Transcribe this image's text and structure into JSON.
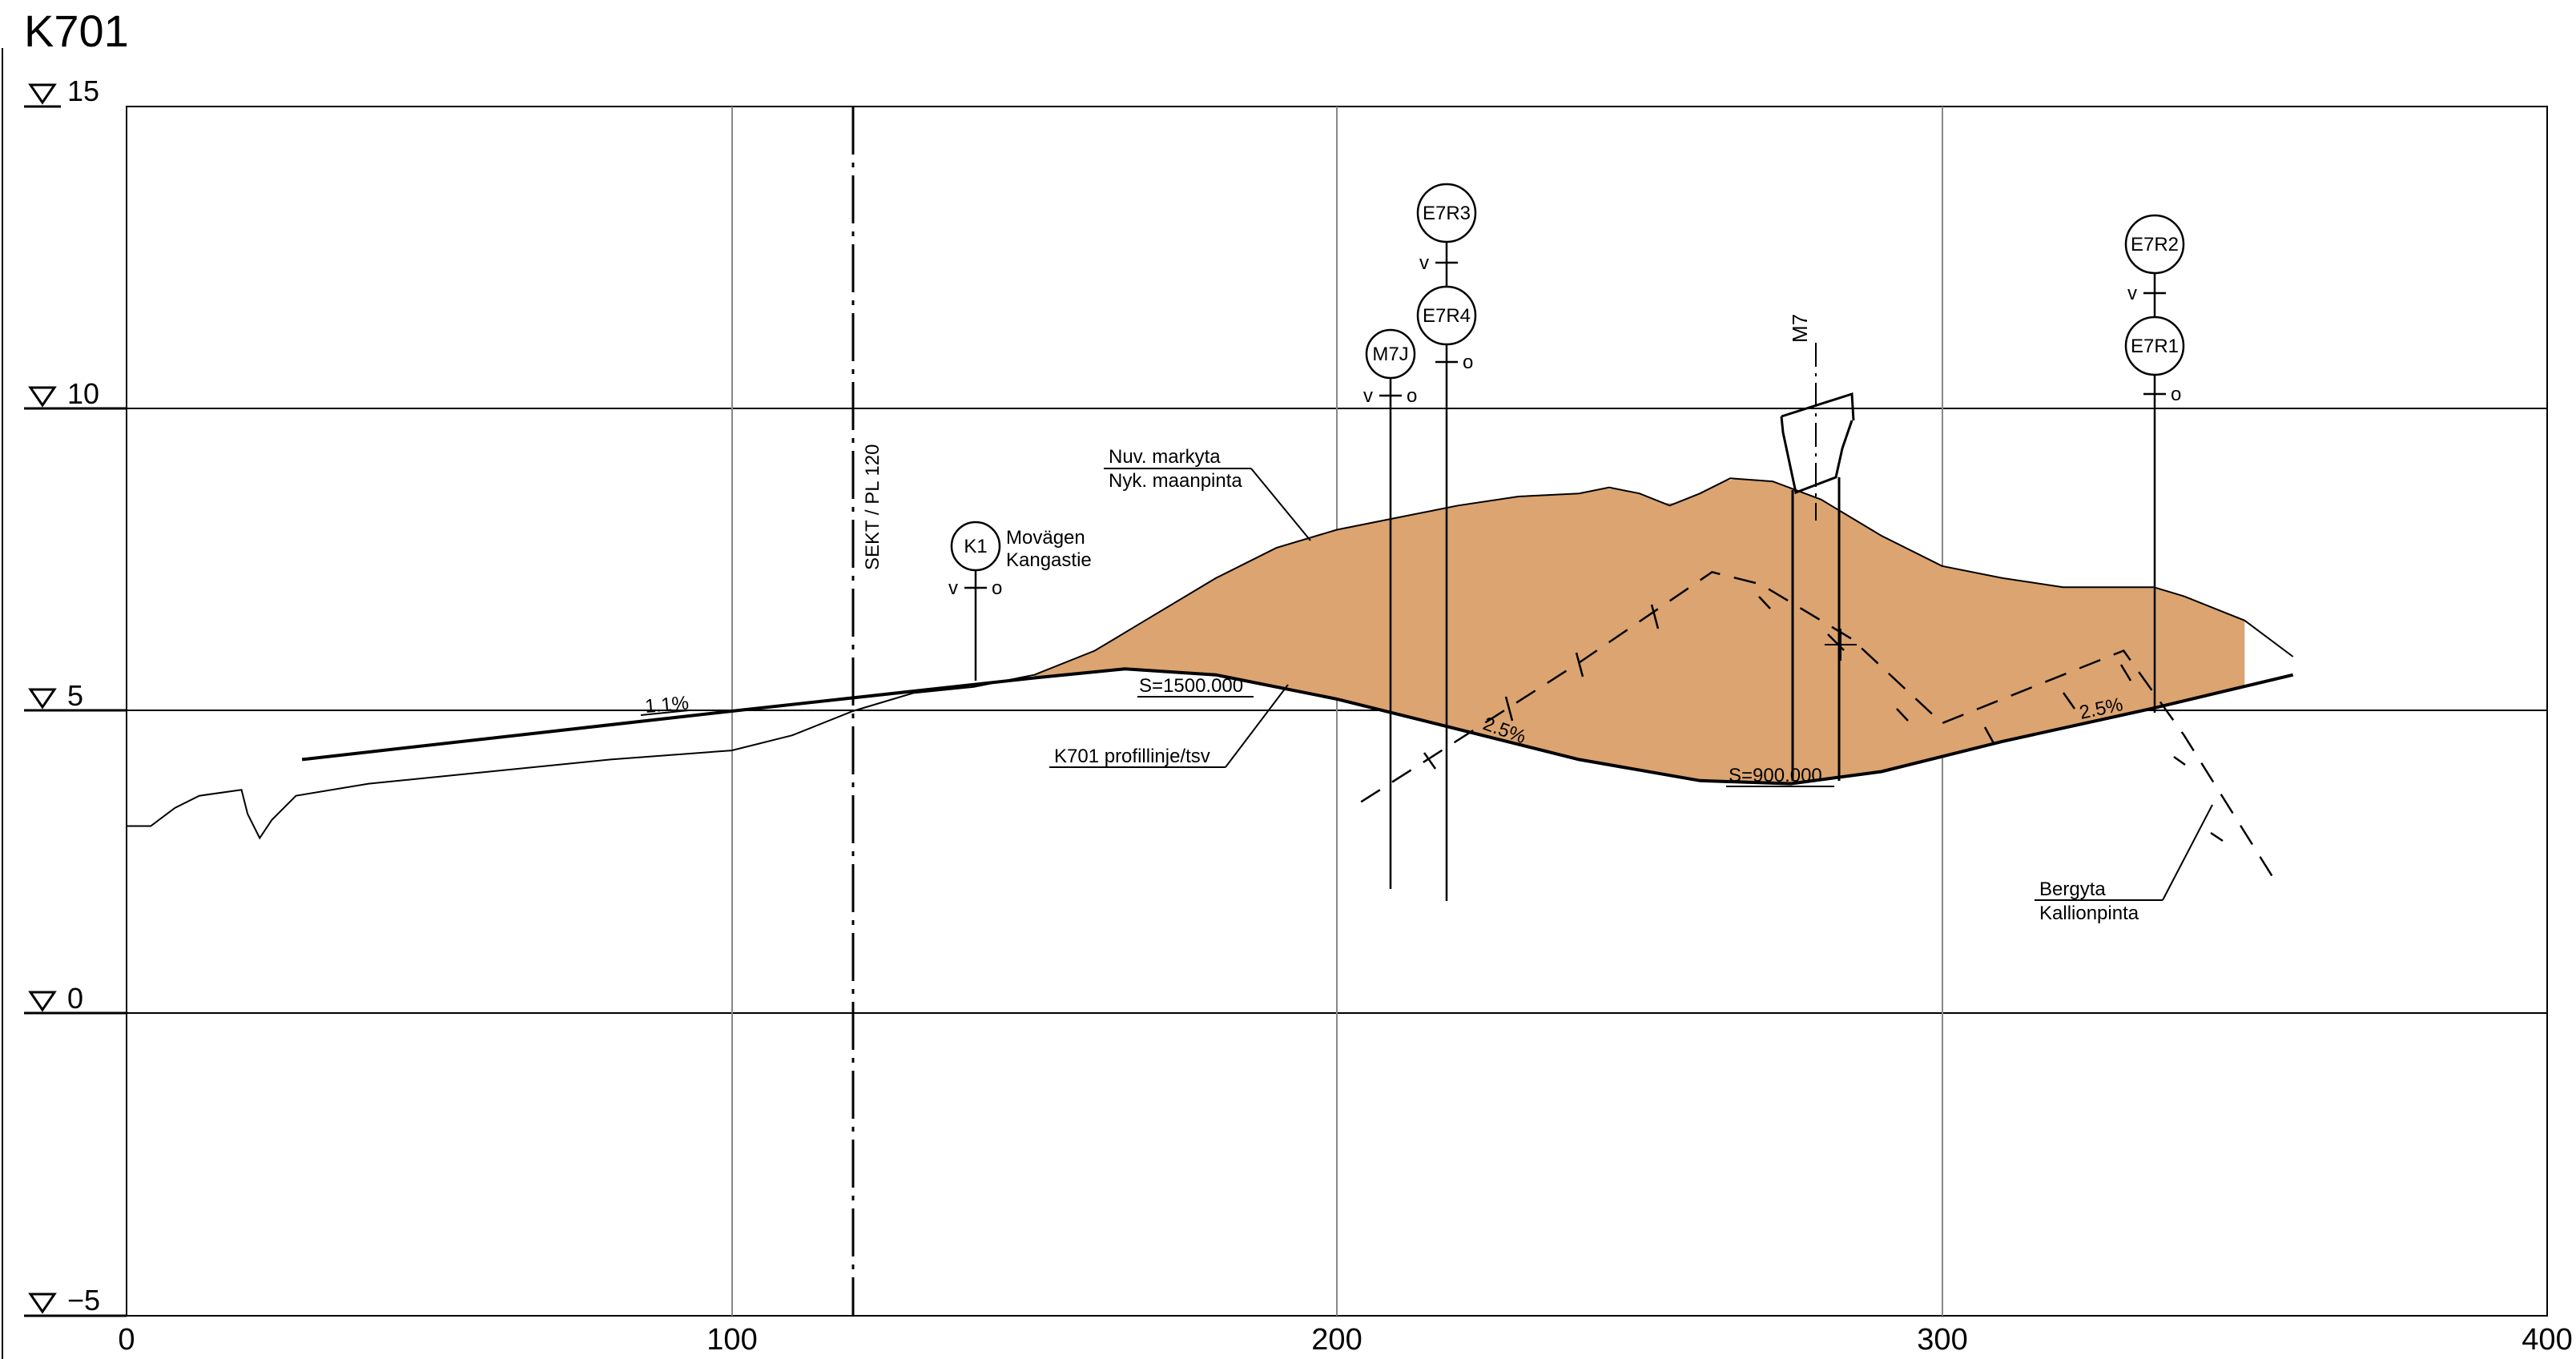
{
  "title": "K701",
  "elevation_labels": [
    "15",
    "10",
    "5",
    "0",
    "−5"
  ],
  "station_labels": [
    "0",
    "100",
    "200",
    "300",
    "400"
  ],
  "section_line": {
    "label": "SEKT / PL 120",
    "station": 120
  },
  "annotations": {
    "ground_surface_sv": "Nuv. markyta",
    "ground_surface_fi": "Nyk. maanpinta",
    "profile_line": "K701 profillinje/tsv",
    "bedrock_sv": "Bergyta",
    "bedrock_fi": "Kallionpinta",
    "slope_left": "1.1%",
    "slope_mid": "2.5%",
    "slope_right": "2.5%",
    "crest_radius": "S=1500.000",
    "sag_radius": "S=900.000",
    "road_sv": "Movägen",
    "road_fi": "Kangastie",
    "structure": "M7"
  },
  "boreholes": [
    {
      "id": "K1",
      "left_mark": "v",
      "right_mark": "o"
    },
    {
      "id": "M7J",
      "left_mark": "v",
      "right_mark": "o"
    },
    {
      "id": "E7R3",
      "left_mark": "v",
      "right_mark": ""
    },
    {
      "id": "E7R4",
      "left_mark": "",
      "right_mark": "o"
    },
    {
      "id": "E7R2",
      "left_mark": "v",
      "right_mark": ""
    },
    {
      "id": "E7R1",
      "left_mark": "",
      "right_mark": "o"
    }
  ],
  "colors": {
    "fill": "#dba470",
    "line": "#000000",
    "grid": "#808080"
  },
  "chart_data": {
    "type": "profile",
    "title": "K701",
    "x_range": [
      0,
      400
    ],
    "y_range": [
      -5,
      15
    ],
    "x_ticks": [
      0,
      100,
      200,
      300,
      400
    ],
    "y_ticks": [
      15,
      10,
      5,
      0,
      -5
    ],
    "grid": true,
    "series": [
      {
        "name": "Nuv. markyta / Nyk. maanpinta",
        "points": [
          [
            0,
            3.1
          ],
          [
            4,
            3.1
          ],
          [
            8,
            3.4
          ],
          [
            12,
            3.6
          ],
          [
            19,
            3.7
          ],
          [
            20,
            3.3
          ],
          [
            22,
            2.9
          ],
          [
            24,
            3.2
          ],
          [
            28,
            3.6
          ],
          [
            40,
            3.8
          ],
          [
            60,
            4.0
          ],
          [
            80,
            4.2
          ],
          [
            100,
            4.35
          ],
          [
            110,
            4.6
          ],
          [
            120,
            5.0
          ],
          [
            130,
            5.3
          ],
          [
            140,
            5.4
          ],
          [
            150,
            5.6
          ],
          [
            160,
            6.0
          ],
          [
            170,
            6.6
          ],
          [
            180,
            7.2
          ],
          [
            190,
            7.7
          ],
          [
            200,
            8.0
          ],
          [
            210,
            8.2
          ],
          [
            220,
            8.4
          ],
          [
            230,
            8.55
          ],
          [
            240,
            8.6
          ],
          [
            245,
            8.7
          ],
          [
            250,
            8.6
          ],
          [
            255,
            8.4
          ],
          [
            260,
            8.6
          ],
          [
            265,
            8.85
          ],
          [
            272,
            8.8
          ],
          [
            280,
            8.5
          ],
          [
            290,
            7.9
          ],
          [
            300,
            7.4
          ],
          [
            310,
            7.2
          ],
          [
            320,
            7.05
          ],
          [
            335,
            7.05
          ],
          [
            340,
            6.9
          ],
          [
            350,
            6.5
          ],
          [
            358,
            5.9
          ]
        ]
      },
      {
        "name": "K701 profillinje/tsv",
        "points": [
          [
            29,
            4.2
          ],
          [
            100,
            5.0
          ],
          [
            150,
            5.55
          ],
          [
            165,
            5.7
          ],
          [
            180,
            5.6
          ],
          [
            200,
            5.2
          ],
          [
            220,
            4.7
          ],
          [
            240,
            4.2
          ],
          [
            260,
            3.85
          ],
          [
            275,
            3.8
          ],
          [
            290,
            4.0
          ],
          [
            310,
            4.5
          ],
          [
            335,
            5.05
          ],
          [
            358,
            5.6
          ]
        ]
      },
      {
        "name": "Bergyta / Kallionpinta",
        "points": [
          [
            204,
            3.5
          ],
          [
            215,
            4.2
          ],
          [
            240,
            5.8
          ],
          [
            262,
            7.3
          ],
          [
            270,
            7.1
          ],
          [
            285,
            6.2
          ],
          [
            300,
            4.8
          ],
          [
            320,
            5.6
          ],
          [
            330,
            6.0
          ],
          [
            340,
            4.6
          ],
          [
            355,
            2.2
          ]
        ]
      }
    ]
  }
}
